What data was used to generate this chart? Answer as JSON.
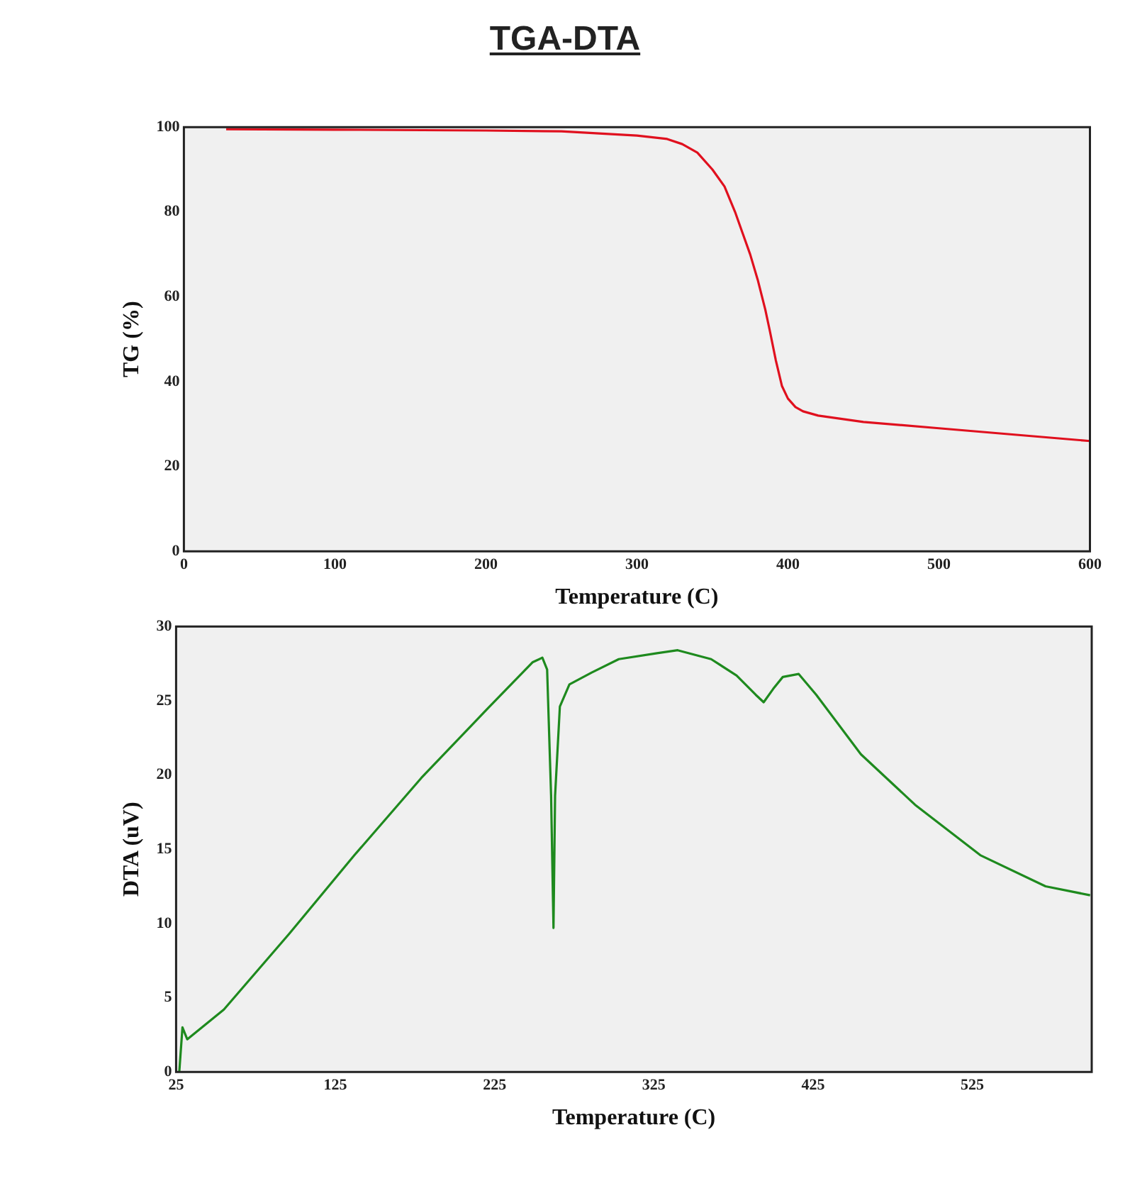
{
  "chart_data": [
    {
      "type": "line",
      "title": "TGA-DTA",
      "xlabel": "Temperature (C)",
      "ylabel": "TG (%)",
      "xlim": [
        0,
        600
      ],
      "xticks": [
        0,
        100,
        200,
        300,
        400,
        500,
        600
      ],
      "ylim": [
        0,
        100
      ],
      "yticks": [
        0,
        20,
        40,
        60,
        80,
        100
      ],
      "grid": false,
      "marker": "none",
      "series": [
        {
          "color": "#e0101e",
          "x": [
            28,
            100,
            200,
            250,
            300,
            320,
            330,
            340,
            350,
            358,
            365,
            370,
            375,
            380,
            385,
            388,
            392,
            396,
            400,
            405,
            410,
            420,
            450,
            500,
            550,
            600
          ],
          "values": [
            99.5,
            99.4,
            99.2,
            99,
            98,
            97.2,
            96,
            94,
            90,
            86,
            80,
            75,
            70,
            64,
            57,
            52,
            45,
            39,
            36,
            34,
            33,
            32,
            30.5,
            29,
            27.5,
            26
          ]
        }
      ]
    },
    {
      "type": "line",
      "xlabel": "Temperature (C)",
      "ylabel": "DTA (uV)",
      "xlim": [
        25,
        600
      ],
      "xticks": [
        25,
        125,
        225,
        325,
        425,
        525
      ],
      "ylim": [
        0,
        30
      ],
      "yticks": [
        0,
        5,
        10,
        15,
        20,
        25,
        30
      ],
      "grid": false,
      "marker": "none",
      "series": [
        {
          "color": "#1e8a1e",
          "x": [
            27,
            29,
            32,
            55,
            96,
            137,
            179,
            220,
            249,
            255,
            258,
            260.5,
            262,
            263,
            266,
            272,
            286,
            303,
            327,
            340,
            361,
            377,
            389,
            394,
            400,
            406,
            416,
            427,
            455,
            489,
            530,
            571,
            599
          ],
          "values": [
            0,
            3.0,
            2.2,
            4.2,
            9.3,
            14.6,
            19.8,
            24.4,
            27.6,
            27.9,
            27.1,
            18.6,
            9.7,
            18.6,
            24.6,
            26.1,
            26.9,
            27.8,
            28.2,
            28.4,
            27.8,
            26.7,
            25.4,
            24.9,
            25.8,
            26.6,
            26.8,
            25.4,
            21.4,
            18.0,
            14.6,
            12.5,
            11.9
          ]
        }
      ]
    }
  ]
}
